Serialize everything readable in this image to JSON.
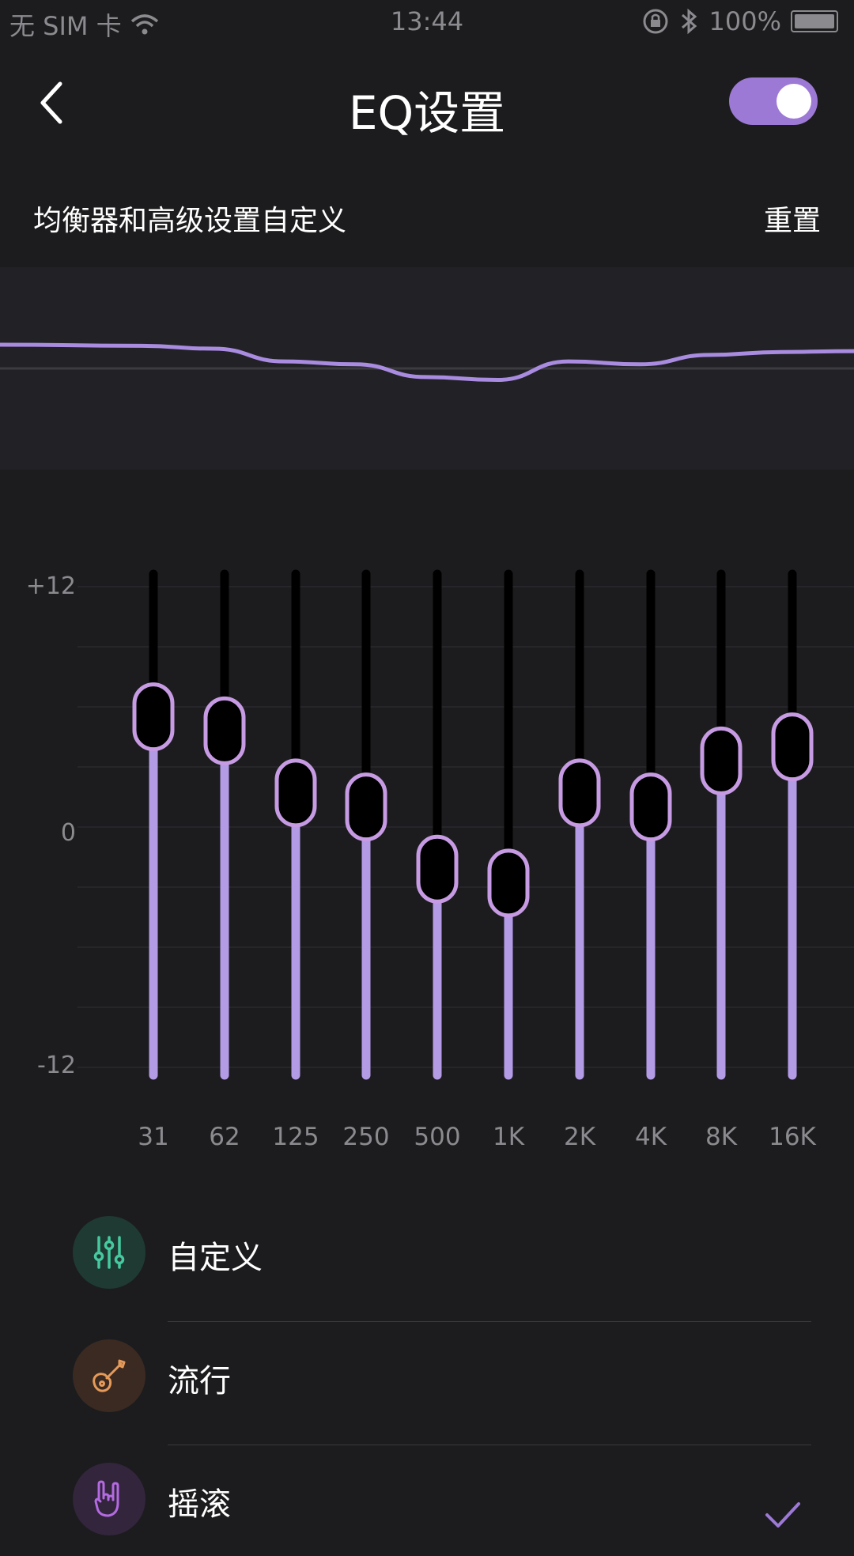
{
  "status_bar": {
    "carrier": "无 SIM 卡",
    "time": "13:44",
    "battery": "100%"
  },
  "header": {
    "title": "EQ设置",
    "toggle_on": true
  },
  "subheader": {
    "description": "均衡器和高级设置自定义",
    "reset_label": "重置"
  },
  "colors": {
    "accent": "#9d79d6",
    "background": "#1c1c1e",
    "curve": "#a98be0"
  },
  "eq": {
    "y_labels": {
      "top": "+12",
      "mid": "0",
      "bottom": "-12"
    },
    "range": [
      -12,
      12
    ],
    "bands": [
      {
        "label": "31",
        "gain": 5.5
      },
      {
        "label": "62",
        "gain": 4.8
      },
      {
        "label": "125",
        "gain": 1.7
      },
      {
        "label": "250",
        "gain": 1.0
      },
      {
        "label": "500",
        "gain": -2.1
      },
      {
        "label": "1K",
        "gain": -2.8
      },
      {
        "label": "2K",
        "gain": 1.7
      },
      {
        "label": "4K",
        "gain": 1.0
      },
      {
        "label": "8K",
        "gain": 3.3
      },
      {
        "label": "16K",
        "gain": 4.0
      }
    ]
  },
  "presets": [
    {
      "label": "自定义",
      "icon": "sliders-icon",
      "icon_color": "#46c9a0",
      "icon_bg": "#1f3a33",
      "selected": false
    },
    {
      "label": "流行",
      "icon": "guitar-icon",
      "icon_color": "#e59a5a",
      "icon_bg": "#3a2a22",
      "selected": false
    },
    {
      "label": "摇滚",
      "icon": "rock-hand-icon",
      "icon_color": "#b46ae0",
      "icon_bg": "#32253c",
      "selected": true
    }
  ]
}
